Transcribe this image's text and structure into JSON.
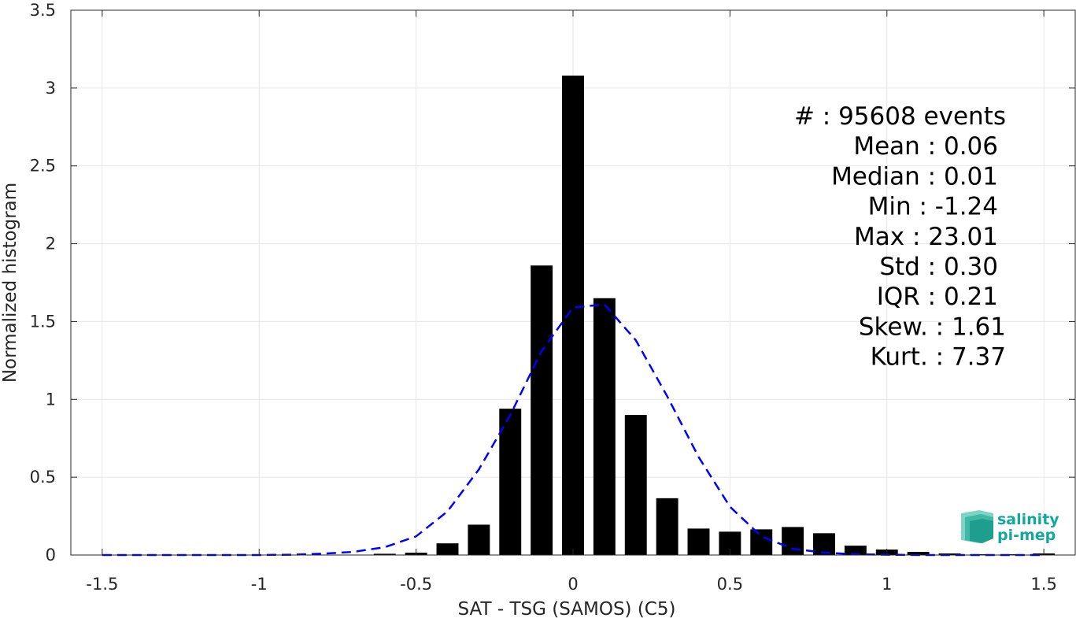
{
  "chart_data": {
    "type": "bar",
    "title": "",
    "xlabel": "SAT - TSG (SAMOS) (C5)",
    "ylabel": "Normalized histogram",
    "xlim": [
      -1.6,
      1.6
    ],
    "ylim": [
      0,
      3.5
    ],
    "xticks": [
      -1.5,
      -1,
      -0.5,
      0,
      0.5,
      1,
      1.5
    ],
    "xtick_labels": [
      "-1.5",
      "-1",
      "-0.5",
      "0",
      "0.5",
      "1",
      "1.5"
    ],
    "yticks": [
      0,
      0.5,
      1,
      1.5,
      2,
      2.5,
      3,
      3.5
    ],
    "ytick_labels": [
      "0",
      "0.5",
      "1",
      "1.5",
      "2",
      "2.5",
      "3",
      "3.5"
    ],
    "grid": true,
    "bar_color": "#000000",
    "fit_color": "#0000ff",
    "bin_width": 0.1,
    "bars": {
      "x": [
        -1.5,
        -1.4,
        -1.3,
        -1.2,
        -1.1,
        -1.0,
        -0.9,
        -0.8,
        -0.7,
        -0.6,
        -0.5,
        -0.4,
        -0.3,
        -0.2,
        -0.1,
        0.0,
        0.1,
        0.2,
        0.3,
        0.4,
        0.5,
        0.6,
        0.7,
        0.8,
        0.9,
        1.0,
        1.1,
        1.2,
        1.3,
        1.4,
        1.5
      ],
      "values": [
        0,
        0,
        0,
        0,
        0,
        0,
        0,
        0,
        0,
        0.008,
        0.015,
        0.075,
        0.195,
        0.94,
        1.86,
        3.08,
        1.65,
        0.9,
        0.365,
        0.17,
        0.15,
        0.165,
        0.18,
        0.14,
        0.06,
        0.035,
        0.02,
        0.01,
        0.005,
        0.005,
        0.01
      ]
    },
    "fit_curve": {
      "style": "dashed",
      "x": [
        -1.5,
        -1.4,
        -1.3,
        -1.2,
        -1.1,
        -1.0,
        -0.9,
        -0.8,
        -0.7,
        -0.6,
        -0.5,
        -0.4,
        -0.3,
        -0.2,
        -0.1,
        0.0,
        0.1,
        0.2,
        0.3,
        0.4,
        0.5,
        0.6,
        0.7,
        0.8,
        0.9,
        1.0,
        1.1,
        1.2,
        1.3,
        1.4,
        1.5
      ],
      "y": [
        0,
        0,
        0,
        0,
        0,
        0,
        0.002,
        0.008,
        0.02,
        0.05,
        0.12,
        0.28,
        0.55,
        0.9,
        1.31,
        1.59,
        1.61,
        1.38,
        1.02,
        0.63,
        0.31,
        0.12,
        0.04,
        0.015,
        0.005,
        0.002,
        0,
        0,
        0,
        0,
        0
      ]
    },
    "stats": [
      "#  : 95608 events",
      "Mean : 0.06",
      "Median : 0.01",
      "Min : -1.24",
      "Max : 23.01",
      "Std : 0.30",
      "IQR : 0.21",
      "Skew. : 1.61",
      "Kurt. : 7.37"
    ],
    "logo": {
      "line1": "salinity",
      "line2": "pi-mep",
      "color": "#13a89e"
    }
  }
}
